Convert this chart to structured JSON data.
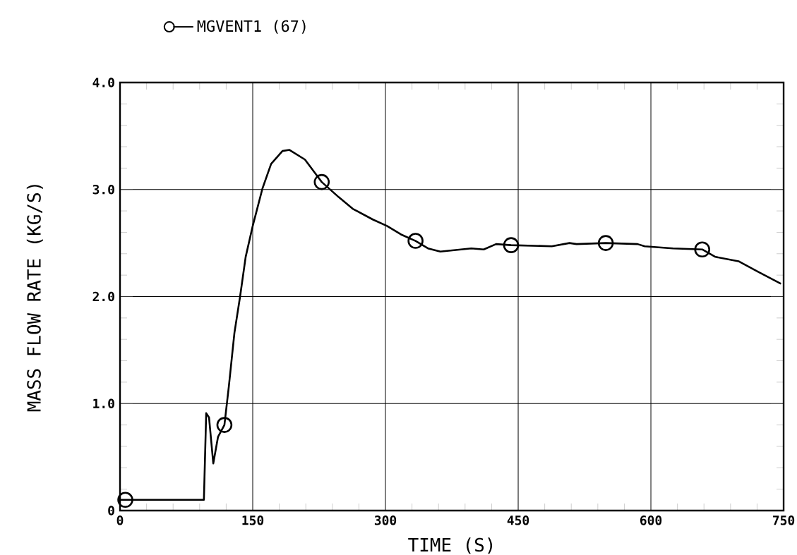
{
  "chart_data": {
    "type": "line",
    "xlabel": "TIME (S)",
    "ylabel": "MASS FLOW RATE (KG/S)",
    "xlim": [
      0,
      750
    ],
    "ylim": [
      0,
      4.0
    ],
    "xticks": [
      0,
      150,
      300,
      450,
      600,
      750
    ],
    "yticks": [
      0,
      {
        "value": 1,
        "label": "1.0"
      },
      {
        "value": 2,
        "label": "2.0"
      },
      {
        "value": 3,
        "label": "3.0"
      },
      {
        "value": 4,
        "label": "4.0"
      }
    ],
    "grid": true,
    "legend": "top left",
    "series": [
      {
        "name": "MGVENT1 (67)",
        "color": "#000000",
        "x": [
          0,
          94.8,
          97.4,
          100.6,
          105.4,
          110.8,
          118,
          123,
          129.3,
          135.7,
          142,
          150,
          161,
          170.8,
          183.6,
          191.5,
          209,
          228,
          247,
          263,
          285.7,
          301.7,
          317.6,
          334,
          348,
          362,
          397,
          411,
          425,
          442,
          488,
          508,
          516,
          549,
          585,
          593,
          625,
          658,
          673,
          699,
          721.5,
          747
        ],
        "values": [
          0.1,
          0.1,
          0.91,
          0.87,
          0.44,
          0.69,
          0.8,
          1.16,
          1.66,
          2.0,
          2.37,
          2.66,
          3.01,
          3.24,
          3.36,
          3.37,
          3.28,
          3.07,
          2.93,
          2.82,
          2.72,
          2.66,
          2.58,
          2.52,
          2.45,
          2.42,
          2.45,
          2.44,
          2.49,
          2.48,
          2.47,
          2.5,
          2.49,
          2.5,
          2.49,
          2.47,
          2.45,
          2.44,
          2.37,
          2.33,
          2.23,
          2.12
        ]
      },
      {
        "type": "scatter",
        "color": "#000000",
        "marker": "circle",
        "x": [
          6,
          118,
          228,
          334,
          442,
          549,
          658
        ],
        "values": [
          0.1,
          0.8,
          3.07,
          2.52,
          2.48,
          2.5,
          2.44
        ]
      }
    ]
  }
}
